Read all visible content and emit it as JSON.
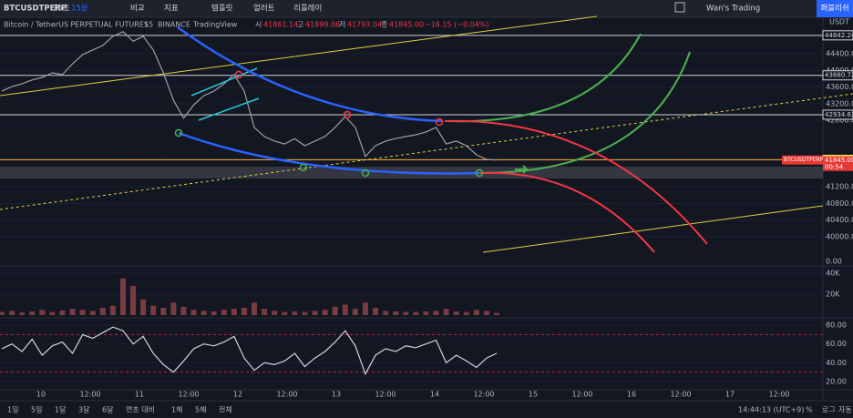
{
  "toolbar": {
    "symbol": "BTCUSDTPERP",
    "intervals": [
      "15초",
      "15분"
    ],
    "buttons": [
      "비교",
      "지표",
      "템플릿",
      "얼러트",
      "리플레이"
    ],
    "account": "Wan's Trading",
    "publish": "퍼블리쉬"
  },
  "legend": {
    "title": "Bitcoin / TetherUS PERPETUAL FUTURES",
    "interval": "15",
    "exchange": "BINANCE",
    "source": "TradingView",
    "ohlc": [
      {
        "label": "시",
        "value": "41861.14"
      },
      {
        "label": "고",
        "value": "41899.06"
      },
      {
        "label": "저",
        "value": "41793.04"
      },
      {
        "label": "종",
        "value": "41845.00"
      }
    ],
    "change": "−16.15 (−0.04%)"
  },
  "chart_data": [
    {
      "type": "line",
      "name": "price",
      "color": "#9aa0a8",
      "currency": "USDT",
      "ylim": [
        39299,
        45079
      ],
      "yticks": [
        {
          "value": 44400,
          "label": "44400.00"
        },
        {
          "value": 44000,
          "label": "44000.00"
        },
        {
          "value": 43600,
          "label": "43600.00"
        },
        {
          "value": 43200,
          "label": "43200.00"
        },
        {
          "value": 42800,
          "label": "42800.00"
        },
        {
          "value": 41200,
          "label": "41200.00"
        },
        {
          "value": 40800,
          "label": "40800.00"
        },
        {
          "value": 40400,
          "label": "40400.00"
        },
        {
          "value": 40000,
          "label": "40000.00"
        }
      ],
      "price_lines": [
        {
          "value": 44842.24,
          "label": "44842.24"
        },
        {
          "value": 43880.72,
          "label": "43880.72"
        },
        {
          "value": 42934.63,
          "label": "42934.63"
        },
        {
          "value": 41851.22,
          "label": "41851.22",
          "color": "#f7d046"
        }
      ],
      "last": {
        "symbol": "BTCUSDTPERP",
        "value": 41845,
        "label": "41845.00",
        "countdown": "00:54",
        "color": "#e53935"
      },
      "zero_label": "0.00",
      "values": [
        43500,
        43610,
        43680,
        43770,
        43830,
        43940,
        43900,
        44160,
        44380,
        44490,
        44600,
        44820,
        44930,
        44700,
        44820,
        44490,
        43940,
        43280,
        42850,
        43170,
        43390,
        43500,
        43680,
        43900,
        43500,
        42630,
        42410,
        42300,
        42230,
        42360,
        42190,
        42300,
        42410,
        42630,
        42890,
        42630,
        41930,
        42190,
        42300,
        42360,
        42410,
        42450,
        42520,
        42630,
        42230,
        42300,
        42190,
        41970,
        41860,
        41845
      ]
    },
    {
      "type": "bar",
      "name": "volume",
      "color": "#7a3b40",
      "ylim": [
        0,
        47000
      ],
      "yticks": [
        {
          "value": 20000,
          "label": "20K"
        },
        {
          "value": 40000,
          "label": "40K"
        }
      ],
      "values": [
        3000,
        4000,
        2500,
        3500,
        5000,
        3000,
        4500,
        6000,
        5000,
        4000,
        7000,
        9000,
        35000,
        28000,
        15000,
        9000,
        7000,
        12000,
        8000,
        5000,
        4000,
        3500,
        5000,
        6000,
        7000,
        12000,
        6000,
        4000,
        3000,
        3500,
        3000,
        4000,
        5000,
        8000,
        10000,
        6000,
        12000,
        7000,
        4000,
        3500,
        3000,
        3000,
        3500,
        4000,
        6000,
        3500,
        3000,
        5000,
        4000,
        2000
      ]
    },
    {
      "type": "line",
      "name": "rsi",
      "color": "#d1d4dc",
      "ylim": [
        11.3,
        86.8
      ],
      "yticks": [
        {
          "value": 80,
          "label": "80.00"
        },
        {
          "value": 60,
          "label": "60.00"
        },
        {
          "value": 40,
          "label": "40.00"
        },
        {
          "value": 20,
          "label": "20.00"
        }
      ],
      "bands": [
        70,
        30
      ],
      "values": [
        55,
        60,
        52,
        65,
        48,
        58,
        62,
        50,
        70,
        66,
        72,
        78,
        74,
        60,
        68,
        50,
        38,
        30,
        42,
        55,
        60,
        58,
        62,
        68,
        45,
        32,
        40,
        38,
        42,
        50,
        36,
        45,
        52,
        62,
        74,
        58,
        28,
        48,
        55,
        52,
        58,
        56,
        60,
        64,
        40,
        48,
        42,
        35,
        45,
        50
      ]
    }
  ],
  "time_axis": [
    "10",
    "12:00",
    "11",
    "12:00",
    "12",
    "12:00",
    "13",
    "12:00",
    "14",
    "12:00",
    "15",
    "12:00",
    "16",
    "12:00",
    "17",
    "12:00"
  ],
  "footer": {
    "ranges": [
      "1일",
      "5일",
      "1달",
      "3달",
      "6달",
      "연초 대비",
      "1해",
      "5해",
      "전체"
    ],
    "clock": "14:44:13 (UTC+9)",
    "options": [
      "%",
      "로그",
      "자동"
    ]
  }
}
